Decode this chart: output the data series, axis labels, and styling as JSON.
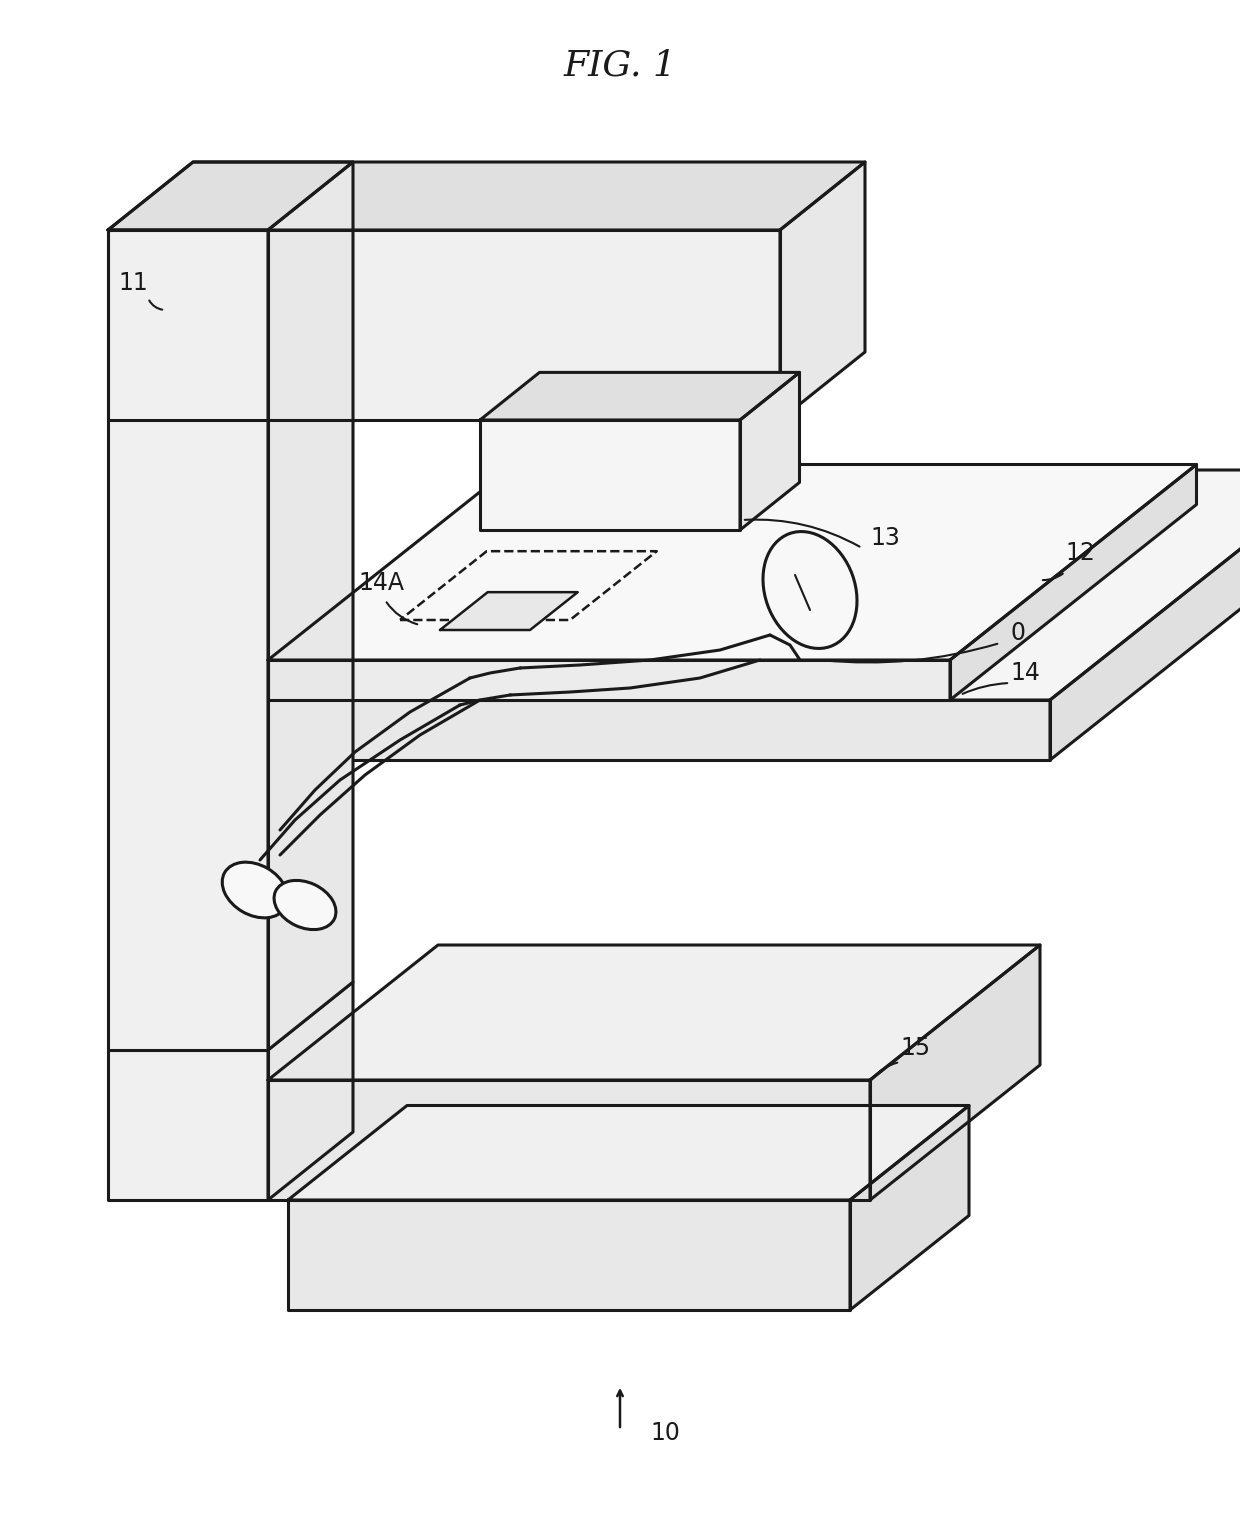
{
  "title": "FIG. 1",
  "title_fontsize": 26,
  "title_style": "italic",
  "title_font": "serif",
  "background_color": "#ffffff",
  "line_color": "#1a1a1a",
  "line_width": 2.2,
  "label_fontsize": 17,
  "fig_width": 12.4,
  "fig_height": 15.29,
  "dpi": 100
}
